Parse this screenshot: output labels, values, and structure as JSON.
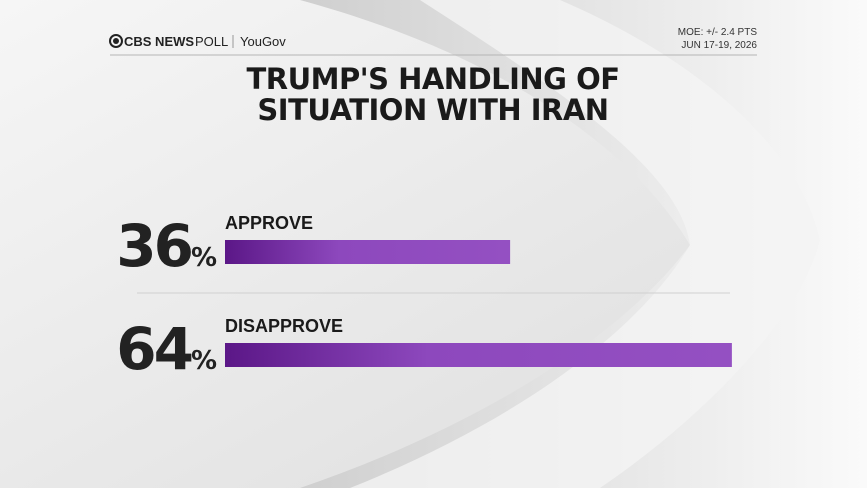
{
  "chart_data": {
    "type": "bar",
    "brand": "CBS NEWS",
    "brand_suffix": "POLL",
    "partner": "YouGov",
    "notes": [
      "MOE: +/- 2.4 PTS",
      "JUN 17-19, 2026"
    ],
    "title": "TRUMP'S HANDLING OF SITUATION WITH IRAN",
    "categories": [
      "APPROVE",
      "DISAPPROVE"
    ],
    "values": [
      36,
      64
    ],
    "value_labels": [
      "36%",
      "64%"
    ],
    "color": "#8a45b8"
  }
}
